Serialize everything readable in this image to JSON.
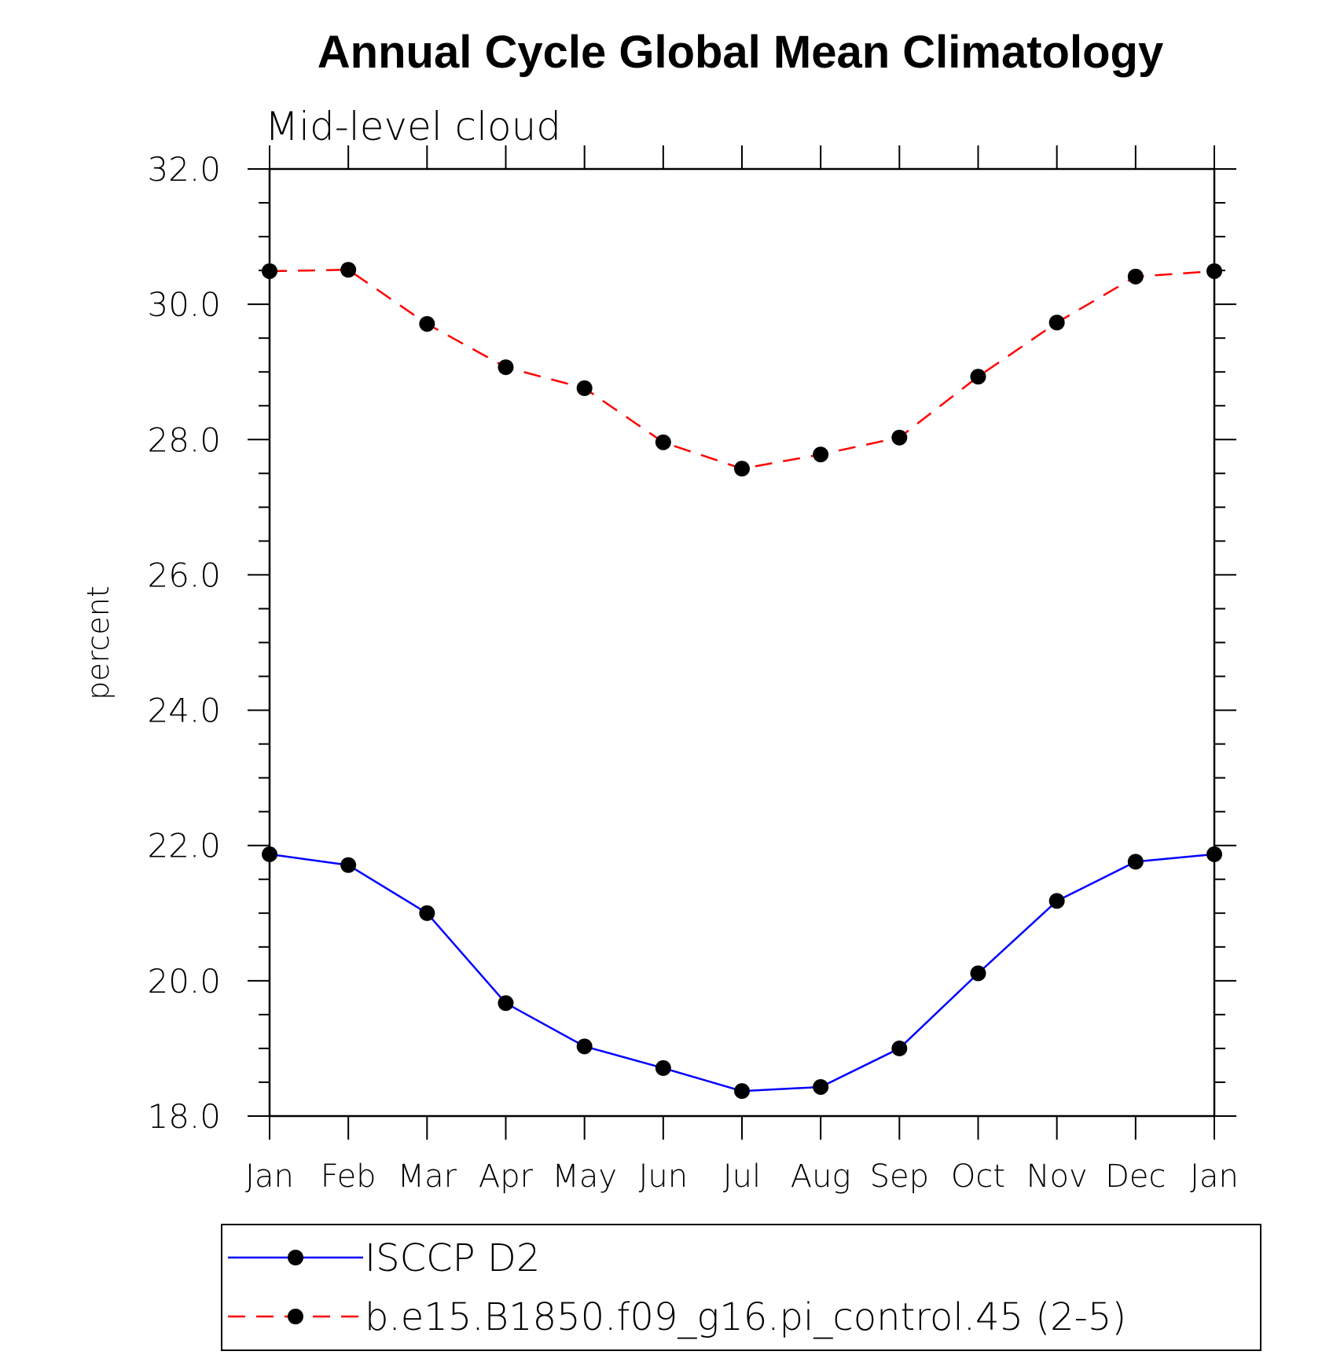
{
  "chart_data": {
    "type": "line",
    "title": "Annual Cycle Global Mean Climatology",
    "subtitle": "Mid-level cloud",
    "ylabel": "percent",
    "xlabel": "",
    "ylim": [
      18.0,
      32.0
    ],
    "yticks": [
      "18.0",
      "20.0",
      "22.0",
      "24.0",
      "26.0",
      "28.0",
      "30.0",
      "32.0"
    ],
    "categories": [
      "Jan",
      "Feb",
      "Mar",
      "Apr",
      "May",
      "Jun",
      "Jul",
      "Aug",
      "Sep",
      "Oct",
      "Nov",
      "Dec",
      "Jan"
    ],
    "grid": false,
    "legend_position": "bottom",
    "series": [
      {
        "name": "ISCCP D2",
        "color": "#0000ff",
        "line_style": "solid",
        "marker": "filled-circle",
        "values": [
          21.87,
          21.71,
          21.0,
          19.67,
          19.03,
          18.71,
          18.37,
          18.43,
          19.0,
          20.11,
          21.18,
          21.76,
          21.87
        ]
      },
      {
        "name": "b.e15.B1850.f09_g16.pi_control.45 (2-5)",
        "color": "#ff0000",
        "line_style": "dashed",
        "marker": "filled-circle",
        "values": [
          30.49,
          30.51,
          29.71,
          29.07,
          28.76,
          27.96,
          27.57,
          27.78,
          28.03,
          28.93,
          29.73,
          30.41,
          30.49
        ]
      }
    ]
  }
}
